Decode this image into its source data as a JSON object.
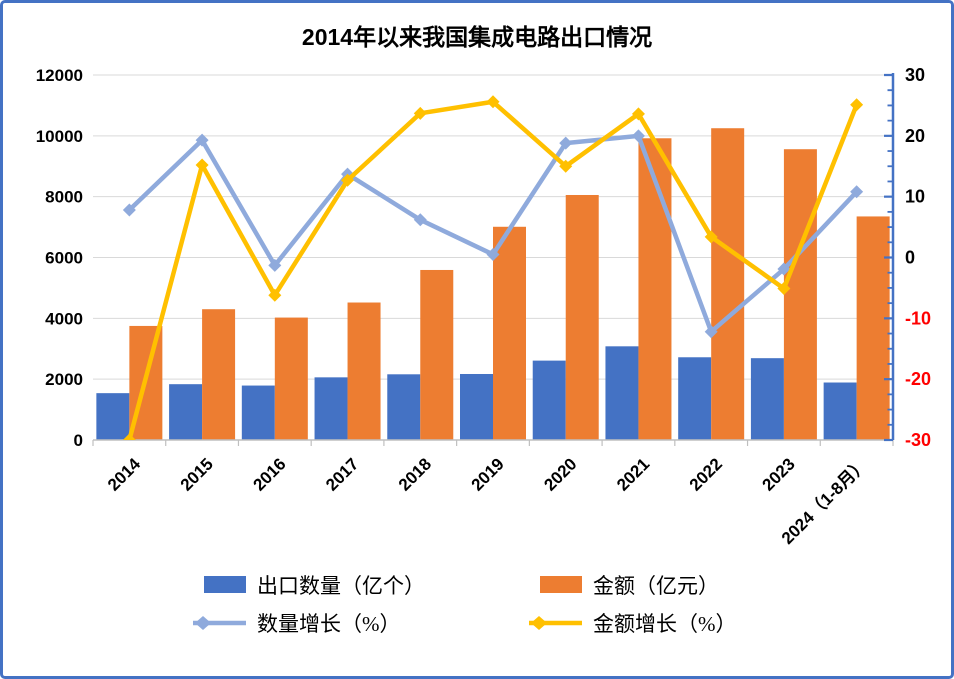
{
  "frame": {
    "border_color": "#4472C4",
    "background": "#FFFFFF"
  },
  "chart_data": {
    "type": "combo",
    "title": "2014年以来我国集成电路出口情况",
    "categories": [
      "2014",
      "2015",
      "2016",
      "2017",
      "2018",
      "2019",
      "2020",
      "2021",
      "2022",
      "2023",
      "2024（1-8月）"
    ],
    "series": [
      {
        "key": "export-quantity",
        "name": "出口数量（亿个）",
        "type": "bar",
        "axis": "left",
        "color": "#4472C4",
        "values": [
          1540,
          1835,
          1790,
          2060,
          2160,
          2170,
          2610,
          3080,
          2720,
          2690,
          1890
        ]
      },
      {
        "key": "export-value",
        "name": "金额（亿元）",
        "type": "bar",
        "axis": "left",
        "color": "#ED7D31",
        "values": [
          3750,
          4300,
          4025,
          4520,
          5590,
          7010,
          8055,
          9920,
          10250,
          9560,
          7350
        ]
      },
      {
        "key": "quantity-growth",
        "name": "数量增长（%）",
        "type": "line",
        "axis": "right",
        "color": "#8FAADC",
        "values": [
          7.8,
          19.3,
          -1.3,
          13.7,
          6.2,
          0.5,
          18.8,
          20.0,
          -12.2,
          -1.9,
          10.8
        ]
      },
      {
        "key": "value-growth",
        "name": "金额增长（%）",
        "type": "line",
        "axis": "right",
        "color": "#FFC000",
        "values": [
          -30.0,
          15.2,
          -6.2,
          12.7,
          23.7,
          25.6,
          15.0,
          23.6,
          3.4,
          -5.1,
          25.1
        ]
      }
    ],
    "axes": {
      "left": {
        "min": 0,
        "max": 12000,
        "step": 2000,
        "tick_labels": [
          "0",
          "2000",
          "4000",
          "6000",
          "8000",
          "10000",
          "12000"
        ],
        "label_color": "#000000"
      },
      "right": {
        "min": -30,
        "max": 30,
        "step": 10,
        "minor_step": 2.5,
        "tick_labels": [
          "-30",
          "-20",
          "-10",
          "0",
          "10",
          "20",
          "30"
        ],
        "axis_color": "#4472C4",
        "label_color": "#000000",
        "negative_label_color": "#FF0000"
      }
    },
    "grid": {
      "show": true,
      "color": "#D9D9D9"
    },
    "x_axis_color": "#BFBFBF",
    "legend_position": "bottom"
  }
}
